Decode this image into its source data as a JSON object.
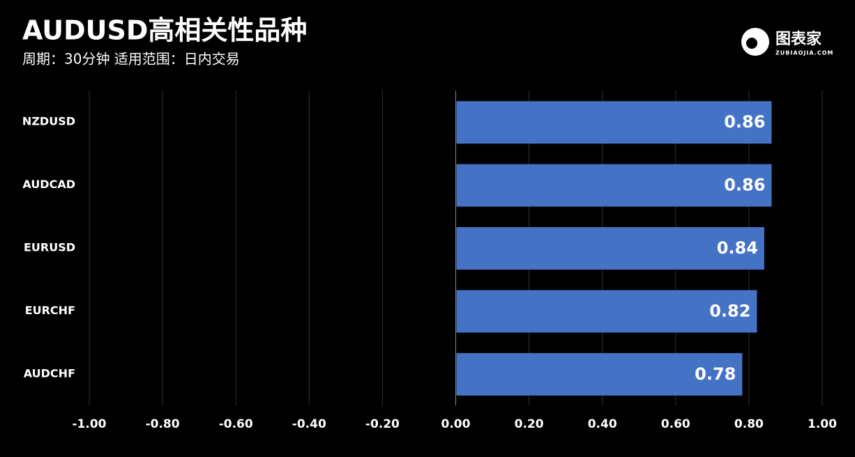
{
  "chart_data": {
    "type": "hbar",
    "title": "AUDUSD高相关性品种",
    "subtitle": "周期：30分钟  适用范围：日内交易",
    "logo": {
      "name": "图表家",
      "site": "ZUBIAOJIA.COM"
    },
    "categories": [
      "NZDUSD",
      "AUDCAD",
      "EURUSD",
      "EURCHF",
      "AUDCHF"
    ],
    "values": [
      0.86,
      0.86,
      0.84,
      0.82,
      0.78
    ],
    "color": "#4472c4",
    "xlim": [
      -1,
      1
    ],
    "xticks": [
      {
        "value": -1,
        "label": "-1.00"
      },
      {
        "value": -0.8,
        "label": "-0.80"
      },
      {
        "value": -0.6,
        "label": "-0.60"
      },
      {
        "value": -0.4,
        "label": "-0.40"
      },
      {
        "value": -0.2,
        "label": "-0.20"
      },
      {
        "value": 0,
        "label": "0.00"
      },
      {
        "value": 0.2,
        "label": "0.20"
      },
      {
        "value": 0.4,
        "label": "0.40"
      },
      {
        "value": 0.6,
        "label": "0.60"
      },
      {
        "value": 0.8,
        "label": "0.80"
      },
      {
        "value": 1,
        "label": "1.00"
      }
    ],
    "grid": true
  }
}
